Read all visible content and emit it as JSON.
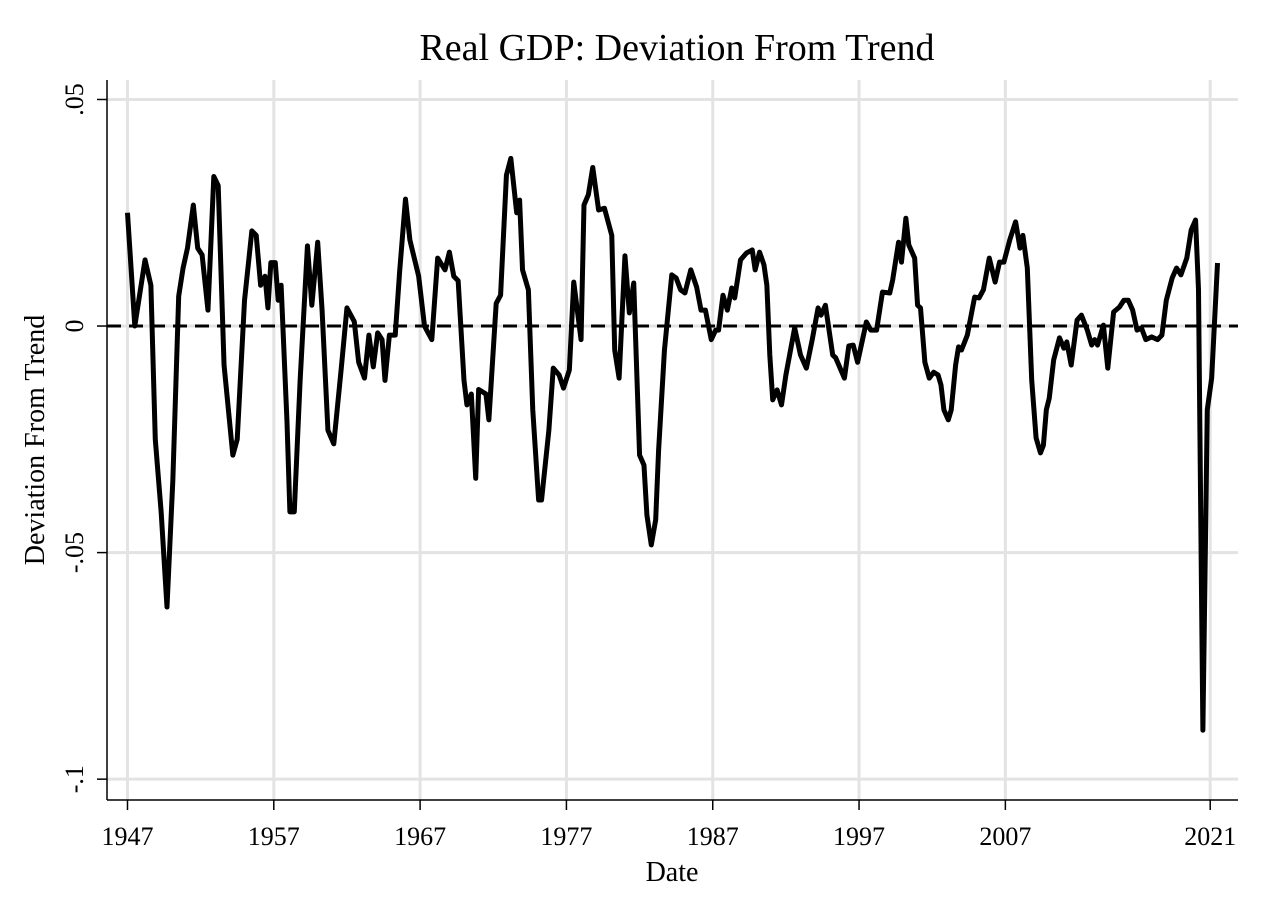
{
  "chart_data": {
    "type": "line",
    "title": "Real GDP: Deviation From Trend",
    "x_label": "Date",
    "y_label": "Deviation From Trend",
    "color": "#000000",
    "grid": true,
    "reference_line": {
      "y": 0,
      "style": "dashed"
    },
    "xlim": [
      1945.6,
      2022.9
    ],
    "ylim": [
      -0.1046,
      0.0543
    ],
    "xticks": [
      1947,
      1957,
      1967,
      1977,
      1987,
      1997,
      2007,
      2021
    ],
    "yticks": [
      {
        "value": 0.05,
        "label": ".05"
      },
      0,
      {
        "value": -0.05,
        "label": "-.05"
      },
      {
        "value": -0.1,
        "label": "-.1"
      }
    ],
    "x": [
      1947.0,
      1947.5,
      1948.2,
      1948.6,
      1948.9,
      1949.3,
      1949.7,
      1950.1,
      1950.5,
      1950.8,
      1951.1,
      1951.5,
      1951.8,
      1952.1,
      1952.5,
      1952.9,
      1953.2,
      1953.6,
      1954.2,
      1954.5,
      1955.0,
      1955.5,
      1955.8,
      1956.1,
      1956.4,
      1956.6,
      1956.8,
      1957.1,
      1957.3,
      1957.5,
      1957.9,
      1958.1,
      1958.4,
      1958.8,
      1959.3,
      1959.6,
      1960.0,
      1960.3,
      1960.7,
      1961.1,
      1961.6,
      1962.0,
      1962.5,
      1962.8,
      1963.2,
      1963.5,
      1963.8,
      1964.1,
      1964.4,
      1964.6,
      1964.9,
      1965.3,
      1965.6,
      1966.0,
      1966.3,
      1966.9,
      1967.3,
      1967.8,
      1968.2,
      1968.7,
      1969.0,
      1969.3,
      1969.6,
      1970.0,
      1970.2,
      1970.5,
      1970.8,
      1971.0,
      1971.5,
      1971.7,
      1972.2,
      1972.5,
      1972.9,
      1973.2,
      1973.6,
      1973.8,
      1974.0,
      1974.4,
      1974.7,
      1975.1,
      1975.3,
      1975.8,
      1976.1,
      1976.5,
      1976.8,
      1977.2,
      1977.5,
      1978.0,
      1978.2,
      1978.5,
      1978.8,
      1979.2,
      1979.6,
      1980.1,
      1980.3,
      1980.6,
      1981.0,
      1981.3,
      1981.6,
      1982.0,
      1982.3,
      1982.5,
      1982.8,
      1983.1,
      1983.3,
      1983.7,
      1984.2,
      1984.5,
      1984.8,
      1985.1,
      1985.5,
      1985.9,
      1986.2,
      1986.5,
      1986.9,
      1987.2,
      1987.4,
      1987.7,
      1988.0,
      1988.3,
      1988.5,
      1988.9,
      1989.3,
      1989.7,
      1989.9,
      1990.2,
      1990.5,
      1990.7,
      1990.9,
      1991.1,
      1991.4,
      1991.7,
      1992.0,
      1992.6,
      1993.0,
      1993.4,
      1993.8,
      1994.2,
      1994.4,
      1994.7,
      1995.2,
      1995.4,
      1996.0,
      1996.3,
      1996.6,
      1996.9,
      1997.5,
      1997.8,
      1998.2,
      1998.6,
      1999.1,
      1999.3,
      1999.7,
      1999.9,
      2000.2,
      2000.4,
      2000.8,
      2001.0,
      2001.2,
      2001.5,
      2001.8,
      2002.1,
      2002.4,
      2002.6,
      2002.8,
      2003.1,
      2003.3,
      2003.6,
      2003.8,
      2004.0,
      2004.4,
      2004.9,
      2005.2,
      2005.5,
      2005.9,
      2006.3,
      2006.6,
      2006.9,
      2007.3,
      2007.7,
      2008.0,
      2008.2,
      2008.5,
      2008.8,
      2009.1,
      2009.4,
      2009.6,
      2009.8,
      2010.0,
      2010.3,
      2010.7,
      2011.0,
      2011.2,
      2011.5,
      2011.9,
      2012.2,
      2012.6,
      2012.9,
      2013.1,
      2013.3,
      2013.7,
      2014.0,
      2014.4,
      2014.8,
      2015.1,
      2015.4,
      2015.7,
      2016.0,
      2016.3,
      2016.6,
      2017.0,
      2017.4,
      2017.7,
      2018.0,
      2018.4,
      2018.7,
      2019.0,
      2019.4,
      2019.7,
      2020.0,
      2020.2,
      2020.5,
      2020.8,
      2021.1,
      2021.5
    ],
    "values": [
      0.025,
      0,
      0.0146,
      0.009,
      -0.025,
      -0.041,
      -0.062,
      -0.034,
      0.0066,
      0.0128,
      0.0172,
      0.0267,
      0.0172,
      0.0157,
      0.0035,
      0.033,
      0.031,
      -0.0086,
      -0.0285,
      -0.025,
      0.0057,
      0.021,
      0.02,
      0.009,
      0.011,
      0.004,
      0.014,
      0.014,
      0.0057,
      0.009,
      -0.021,
      -0.041,
      -0.041,
      -0.012,
      0.0177,
      0.0046,
      0.0185,
      0.0035,
      -0.023,
      -0.026,
      -0.0097,
      0.004,
      0.001,
      -0.008,
      -0.0115,
      -0.002,
      -0.009,
      -0.0015,
      -0.003,
      -0.012,
      -0.002,
      -0.002,
      0.012,
      0.028,
      0.019,
      0.011,
      0,
      -0.003,
      0.015,
      0.0124,
      0.0163,
      0.011,
      0.01,
      -0.012,
      -0.0174,
      -0.015,
      -0.0336,
      -0.014,
      -0.015,
      -0.0207,
      0.005,
      0.0068,
      0.0333,
      0.037,
      0.025,
      0.0278,
      0.0124,
      0.008,
      -0.0185,
      -0.0384,
      -0.0384,
      -0.023,
      -0.0093,
      -0.0108,
      -0.0137,
      -0.0097,
      0.0097,
      -0.003,
      0.0267,
      0.029,
      0.035,
      0.0256,
      0.026,
      0.02,
      -0.0053,
      -0.0115,
      0.0155,
      0.0029,
      0.0095,
      -0.0285,
      -0.0307,
      -0.0417,
      -0.0483,
      -0.0428,
      -0.0274,
      -0.0053,
      0.0113,
      0.0106,
      0.008,
      0.0073,
      0.0124,
      0.0086,
      0.0035,
      0.0035,
      -0.003,
      -0.0009,
      -0.0009,
      0.0068,
      0.0035,
      0.0084,
      0.0062,
      0.0146,
      0.0161,
      0.0168,
      0.0124,
      0.0163,
      0.0135,
      0.009,
      -0.0064,
      -0.0163,
      -0.0141,
      -0.0174,
      -0.0108,
      -0.0004,
      -0.0064,
      -0.0093,
      -0.003,
      0.004,
      0.0024,
      0.0046,
      -0.0064,
      -0.007,
      -0.0115,
      -0.0044,
      -0.0042,
      -0.008,
      0.0009,
      -0.0009,
      -0.0009,
      0.0075,
      0.0073,
      0.0102,
      0.0185,
      0.0141,
      0.0238,
      0.0179,
      0.015,
      0.0046,
      0.004,
      -0.008,
      -0.0115,
      -0.0102,
      -0.0108,
      -0.013,
      -0.0185,
      -0.0207,
      -0.0185,
      -0.0086,
      -0.0046,
      -0.0053,
      -0.002,
      0.0064,
      0.0062,
      0.008,
      0.015,
      0.0097,
      0.0141,
      0.0141,
      0.019,
      0.023,
      0.0172,
      0.02,
      0.0128,
      -0.0119,
      -0.0247,
      -0.028,
      -0.0263,
      -0.0185,
      -0.0159,
      -0.0075,
      -0.0026,
      -0.0049,
      -0.0035,
      -0.0086,
      0.0013,
      0.0024,
      -0.0009,
      -0.0042,
      -0.003,
      -0.0042,
      0.0002,
      -0.0093,
      0.0031,
      0.0042,
      0.0057,
      0.0057,
      0.0035,
      -0.0009,
      -0.0004,
      -0.003,
      -0.0024,
      -0.003,
      -0.002,
      0.0057,
      0.0106,
      0.0128,
      0.0113,
      0.015,
      0.0212,
      0.0234,
      0.008,
      -0.0892,
      -0.0185,
      -0.0115,
      0.0139
    ]
  }
}
